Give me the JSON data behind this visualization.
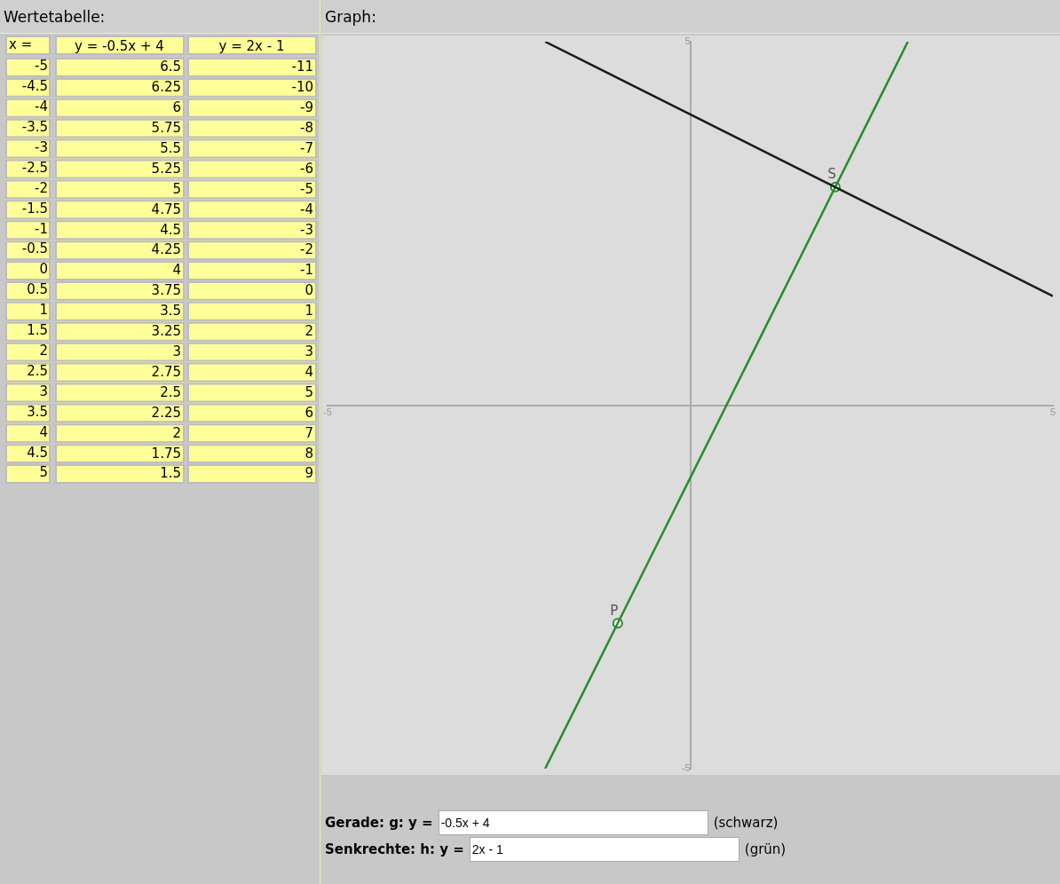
{
  "chart_data": [
    {
      "type": "heatmap",
      "title": "Wertetabelle:",
      "data_labels": true,
      "ylabel": "x =",
      "categories": [
        "y = -0.5x + 4",
        "y = 2x - 1"
      ],
      "y_categories": [
        "-5",
        "-4.5",
        "-4",
        "-3.5",
        "-3",
        "-2.5",
        "-2",
        "-1.5",
        "-1",
        "-0.5",
        "0",
        "0.5",
        "1",
        "1.5",
        "2",
        "2.5",
        "3",
        "3.5",
        "4",
        "4.5",
        "5"
      ],
      "cells": [
        [
          6.5,
          -11
        ],
        [
          6.25,
          -10
        ],
        [
          6,
          -9
        ],
        [
          5.75,
          -8
        ],
        [
          5.5,
          -7
        ],
        [
          5.25,
          -6
        ],
        [
          5,
          -5
        ],
        [
          4.75,
          -4
        ],
        [
          4.5,
          -3
        ],
        [
          4.25,
          -2
        ],
        [
          4,
          -1
        ],
        [
          3.75,
          0
        ],
        [
          3.5,
          1
        ],
        [
          3.25,
          2
        ],
        [
          3,
          3
        ],
        [
          2.75,
          4
        ],
        [
          2.5,
          5
        ],
        [
          2.25,
          6
        ],
        [
          2,
          7
        ],
        [
          1.75,
          8
        ],
        [
          1.5,
          9
        ]
      ]
    },
    {
      "type": "line",
      "title": "Graph:",
      "series": [
        {
          "color": "#1a1a1a",
          "x": [
            -2,
            -1.5,
            -1,
            -0.5,
            0,
            0.5,
            1,
            1.5,
            2,
            2.5,
            3,
            3.5,
            4,
            4.5,
            5
          ],
          "values": [
            5,
            4.75,
            4.5,
            4.25,
            4,
            3.75,
            3.5,
            3.25,
            3,
            2.75,
            2.5,
            2.25,
            2,
            1.75,
            1.5
          ]
        },
        {
          "color": "#2a8a2a",
          "x": [
            -2,
            -1.5,
            -1,
            -0.5,
            0,
            0.5,
            1,
            1.5,
            2,
            2.5,
            3
          ],
          "values": [
            -5,
            -4,
            -3,
            -2,
            -1,
            0,
            1,
            2,
            3,
            4,
            5
          ]
        },
        {
          "type": "scatter",
          "color": "#2a8a2a",
          "x": [
            2,
            -1
          ],
          "values": [
            3,
            -3
          ],
          "marker": "circle"
        }
      ],
      "xlim": [
        -5,
        5
      ],
      "ylim": [
        -5,
        5
      ],
      "xticks": [
        -5,
        5
      ],
      "yticks": [
        -5,
        5
      ],
      "grid": false,
      "legend": false,
      "marker": "none",
      "annotations": [
        "Gerade: g: y =",
        "-0.5x + 4",
        "(schwarz)",
        "Senkrechte: h: y =",
        "2x - 1",
        "(grün)",
        {
          "text": "S",
          "x": 2,
          "y": 3
        },
        {
          "text": "P",
          "x": -1,
          "y": -3
        }
      ]
    }
  ]
}
